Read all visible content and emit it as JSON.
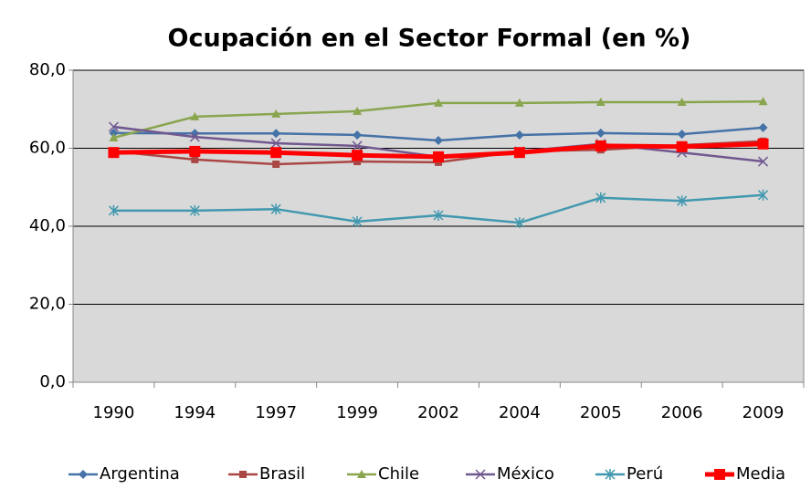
{
  "chart_data": {
    "type": "line",
    "title": "Ocupación en el Sector Formal (en %)",
    "categories": [
      "1990",
      "1994",
      "1997",
      "1999",
      "2002",
      "2004",
      "2005",
      "2006",
      "2009"
    ],
    "ylim": [
      0,
      80
    ],
    "yticks": [
      {
        "value": 0,
        "label": "0,0"
      },
      {
        "value": 20,
        "label": "20,0"
      },
      {
        "value": 40,
        "label": "40,0"
      },
      {
        "value": 60,
        "label": "60,0"
      },
      {
        "value": 80,
        "label": "80,0"
      }
    ],
    "grid": true,
    "legend": "bottom",
    "series": [
      {
        "name": "Argentina",
        "color": "#4572a7",
        "marker": "diamond",
        "values": [
          63.9,
          63.8,
          63.8,
          63.4,
          62.0,
          63.4,
          63.9,
          63.6,
          65.3
        ]
      },
      {
        "name": "Brasil",
        "color": "#aa4643",
        "marker": "square",
        "values": [
          59.2,
          57.1,
          55.9,
          56.6,
          56.4,
          59.2,
          59.6,
          60.8,
          61.8
        ]
      },
      {
        "name": "Chile",
        "color": "#89a54e",
        "marker": "triangle",
        "values": [
          62.7,
          68.1,
          68.8,
          69.5,
          71.6,
          71.6,
          71.8,
          71.8,
          72.0
        ]
      },
      {
        "name": "México",
        "color": "#71588f",
        "marker": "x",
        "values": [
          65.5,
          62.9,
          61.3,
          60.6,
          57.8,
          59.2,
          61.1,
          58.9,
          56.6
        ]
      },
      {
        "name": "Perú",
        "color": "#4198af",
        "marker": "star",
        "values": [
          44.0,
          44.0,
          44.4,
          41.2,
          42.8,
          40.9,
          47.3,
          46.5,
          48.0
        ]
      },
      {
        "name": "Media",
        "color": "#ff0000",
        "marker": "bigsquare",
        "values": [
          58.9,
          59.2,
          58.9,
          58.2,
          57.8,
          58.9,
          60.6,
          60.4,
          61.1
        ]
      }
    ]
  }
}
